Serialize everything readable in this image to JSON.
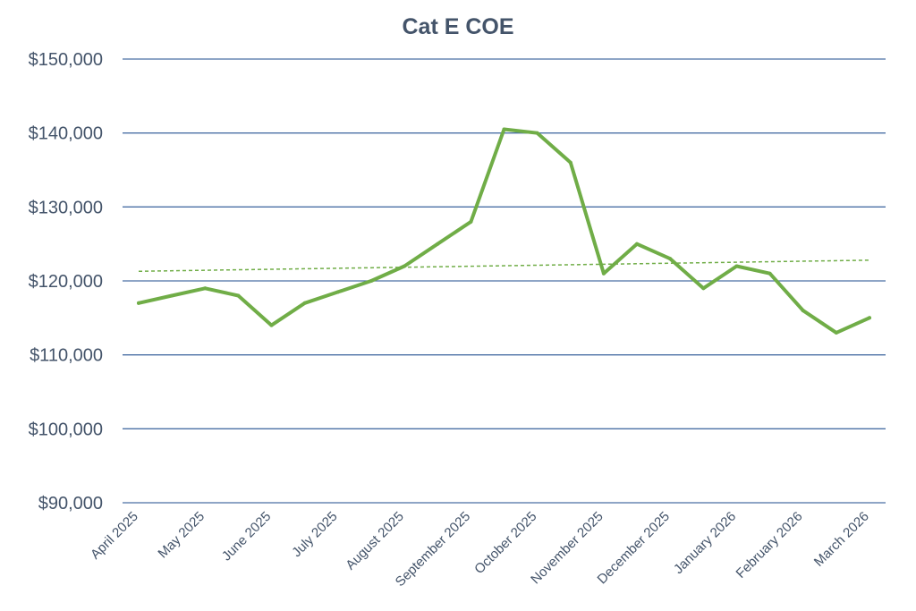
{
  "chart_data": {
    "type": "line",
    "title": "Cat E COE",
    "xlabel": "",
    "ylabel": "",
    "ylim": [
      90000,
      150000
    ],
    "y_ticks": [
      90000,
      100000,
      110000,
      120000,
      130000,
      140000,
      150000
    ],
    "y_tick_labels": [
      "$90,000",
      "$100,000",
      "$110,000",
      "$120,000",
      "$130,000",
      "$140,000",
      "$150,000"
    ],
    "x_labels": [
      "April 2025",
      "May 2025",
      "June 2025",
      "July 2025",
      "August 2025",
      "September 2025",
      "October 2025",
      "November 2025",
      "December 2025",
      "January 2026",
      "February 2026",
      "March 2026"
    ],
    "grid": true,
    "legend": "none",
    "series": [
      {
        "values": [
          117000,
          118000,
          119000,
          118000,
          114000,
          117000,
          118500,
          120000,
          122000,
          125000,
          128000,
          140500,
          140000,
          136000,
          121000,
          125000,
          123000,
          119000,
          122000,
          121000,
          116000,
          113000,
          115000
        ]
      }
    ],
    "trendline": {
      "type": "linear",
      "start": 121300,
      "end": 122800
    },
    "colors": {
      "line": "#70ad47",
      "grid": "#4a6fa5",
      "text": "#44546a"
    }
  }
}
